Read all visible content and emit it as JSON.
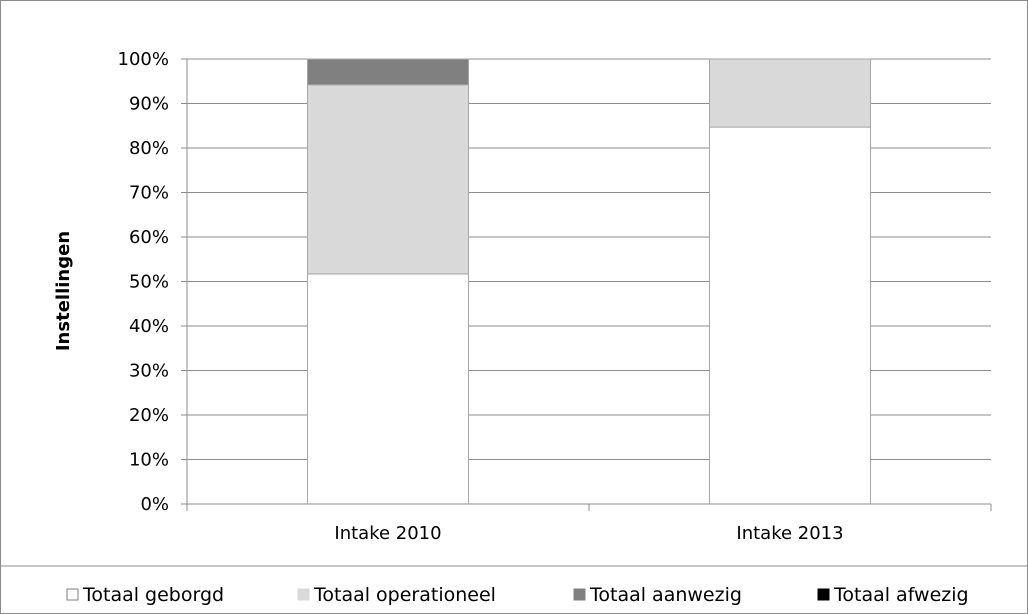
{
  "chart_data": {
    "type": "bar",
    "stacked": true,
    "title": "",
    "xlabel": "",
    "ylabel": "Instellingen",
    "ylim": [
      0,
      100
    ],
    "yticks": [
      "0%",
      "10%",
      "20%",
      "30%",
      "40%",
      "50%",
      "60%",
      "70%",
      "80%",
      "90%",
      "100%"
    ],
    "y_unit": "%",
    "grid": true,
    "legend_position": "bottom",
    "categories": [
      "Intake 2010",
      "Intake 2013"
    ],
    "series": [
      {
        "name": "Totaal geborgd",
        "values": [
          51.7,
          84.7
        ],
        "color": "#ffffff"
      },
      {
        "name": "Totaal operationeel",
        "values": [
          42.5,
          15.3
        ],
        "color": "#d9d9d9"
      },
      {
        "name": "Totaal aanwezig",
        "values": [
          5.8,
          0
        ],
        "color": "#808080"
      },
      {
        "name": "Totaal afwezig",
        "values": [
          0,
          0
        ],
        "color": "#000000"
      }
    ]
  }
}
